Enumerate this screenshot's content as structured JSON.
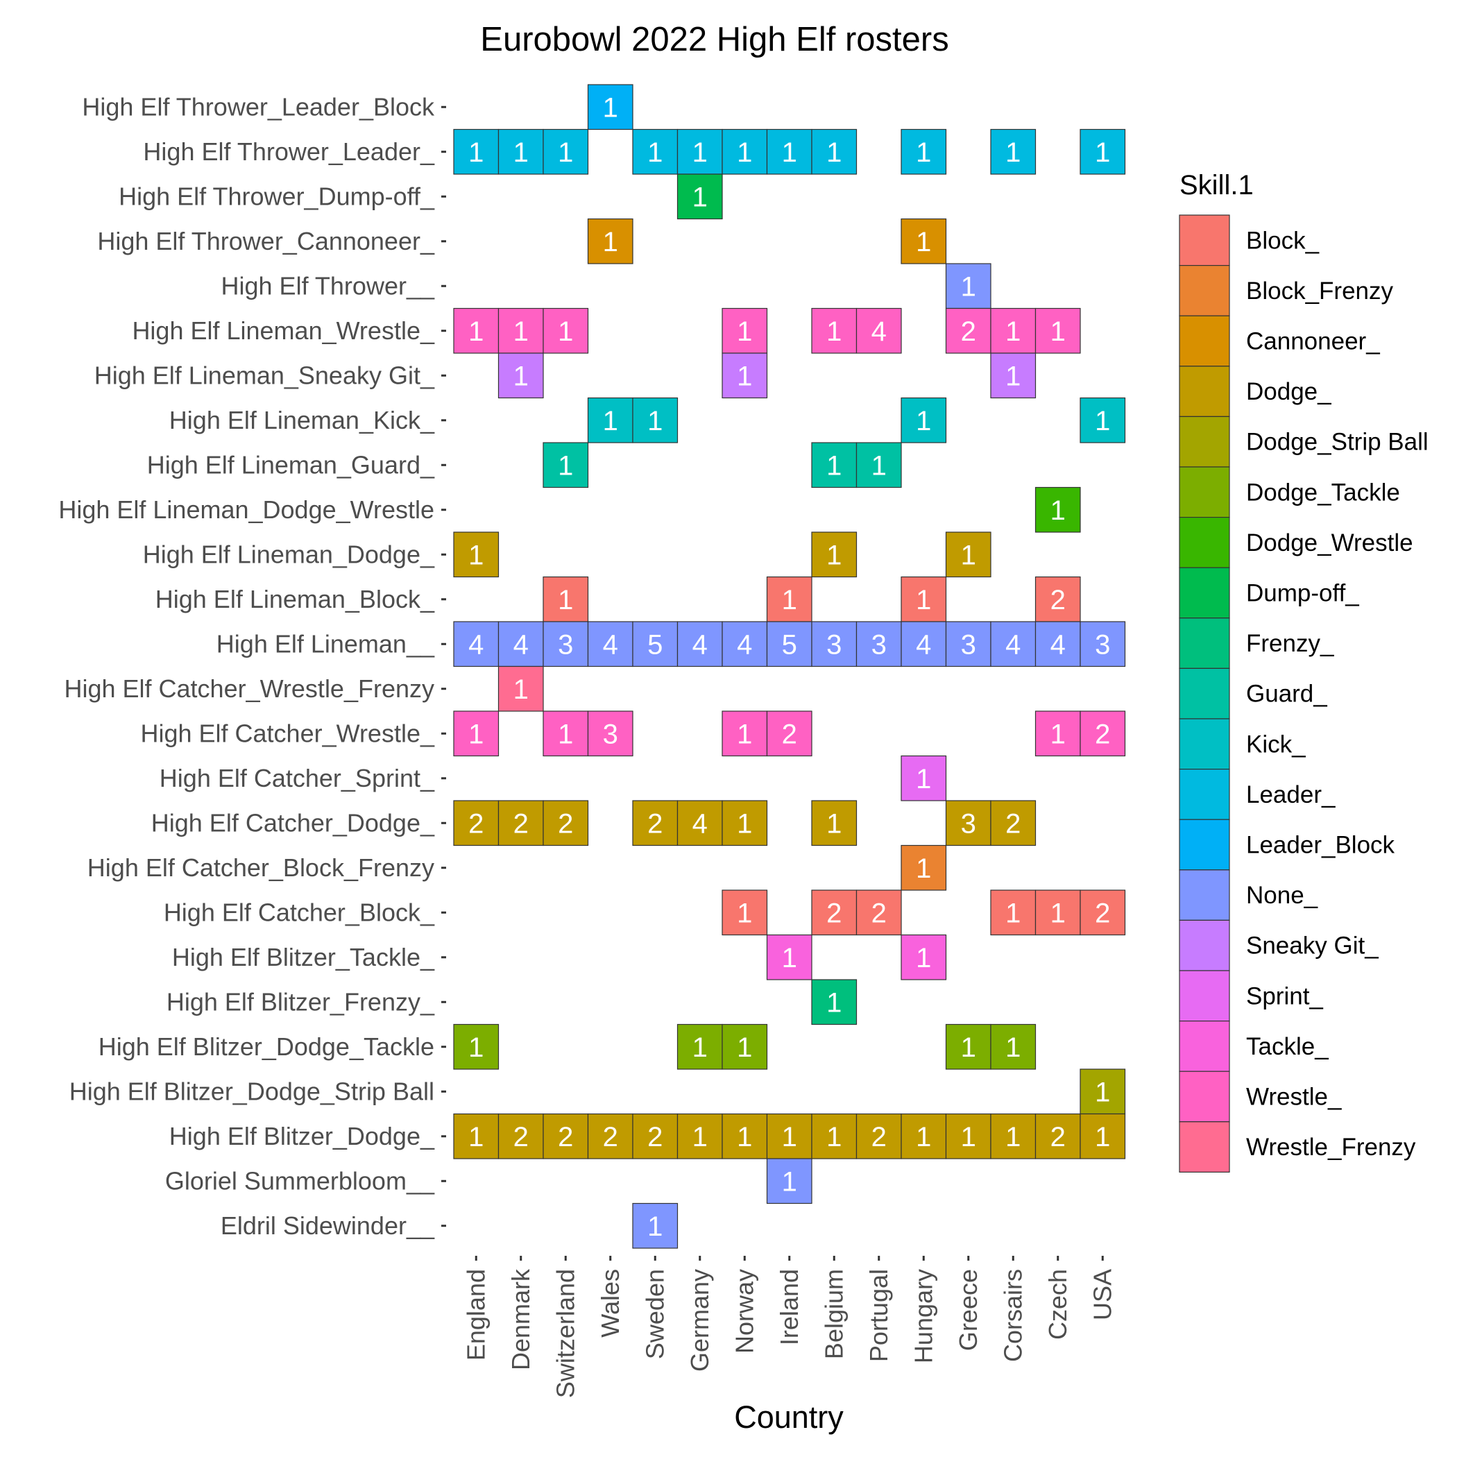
{
  "chart_data": {
    "type": "heatmap",
    "title": "Eurobowl 2022 High Elf rosters",
    "xlabel": "Country",
    "ylabel": "",
    "legend_title": "Skill.1",
    "legend_position": "right",
    "grid": false,
    "x_categories": [
      "England",
      "Denmark",
      "Switzerland",
      "Wales",
      "Sweden",
      "Germany",
      "Norway",
      "Ireland",
      "Belgium",
      "Portugal",
      "Hungary",
      "Greece",
      "Corsairs",
      "Czech",
      "USA"
    ],
    "y_categories": [
      "High Elf Thrower_Leader_Block",
      "High Elf Thrower_Leader_",
      "High Elf Thrower_Dump-off_",
      "High Elf Thrower_Cannoneer_",
      "High Elf Thrower__",
      "High Elf Lineman_Wrestle_",
      "High Elf Lineman_Sneaky Git_",
      "High Elf Lineman_Kick_",
      "High Elf Lineman_Guard_",
      "High Elf Lineman_Dodge_Wrestle",
      "High Elf Lineman_Dodge_",
      "High Elf Lineman_Block_",
      "High Elf Lineman__",
      "High Elf Catcher_Wrestle_Frenzy",
      "High Elf Catcher_Wrestle_",
      "High Elf Catcher_Sprint_",
      "High Elf Catcher_Dodge_",
      "High Elf Catcher_Block_Frenzy",
      "High Elf Catcher_Block_",
      "High Elf Blitzer_Tackle_",
      "High Elf Blitzer_Frenzy_",
      "High Elf Blitzer_Dodge_Tackle",
      "High Elf Blitzer_Dodge_Strip Ball",
      "High Elf Blitzer_Dodge_",
      "Gloriel Summerbloom__",
      "Eldril Sidewinder__"
    ],
    "legend": [
      {
        "skill": "Block_",
        "color": "#F8766D"
      },
      {
        "skill": "Block_Frenzy",
        "color": "#EA8331"
      },
      {
        "skill": "Cannoneer_",
        "color": "#D89000"
      },
      {
        "skill": "Dodge_",
        "color": "#C09B00"
      },
      {
        "skill": "Dodge_Strip Ball",
        "color": "#A3A500"
      },
      {
        "skill": "Dodge_Tackle",
        "color": "#7CAE00"
      },
      {
        "skill": "Dodge_Wrestle",
        "color": "#39B600"
      },
      {
        "skill": "Dump-off_",
        "color": "#00BB4E"
      },
      {
        "skill": "Frenzy_",
        "color": "#00BF7D"
      },
      {
        "skill": "Guard_",
        "color": "#00C1A3"
      },
      {
        "skill": "Kick_",
        "color": "#00BFC4"
      },
      {
        "skill": "Leader_",
        "color": "#00BAE0"
      },
      {
        "skill": "Leader_Block",
        "color": "#00B0F6"
      },
      {
        "skill": "None_",
        "color": "#7F96FF"
      },
      {
        "skill": "Sneaky Git_",
        "color": "#C77CFF"
      },
      {
        "skill": "Sprint_",
        "color": "#E76BF3"
      },
      {
        "skill": "Tackle_",
        "color": "#F962DD"
      },
      {
        "skill": "Wrestle_",
        "color": "#FF61C3"
      },
      {
        "skill": "Wrestle_Frenzy",
        "color": "#FF6C91"
      }
    ],
    "rows": [
      {
        "skill": "Leader_Block",
        "counts": [
          null,
          null,
          null,
          1,
          null,
          null,
          null,
          null,
          null,
          null,
          null,
          null,
          null,
          null,
          null
        ]
      },
      {
        "skill": "Leader_",
        "counts": [
          1,
          1,
          1,
          null,
          1,
          1,
          1,
          1,
          1,
          null,
          1,
          null,
          1,
          null,
          1
        ]
      },
      {
        "skill": "Dump-off_",
        "counts": [
          null,
          null,
          null,
          null,
          null,
          1,
          null,
          null,
          null,
          null,
          null,
          null,
          null,
          null,
          null
        ]
      },
      {
        "skill": "Cannoneer_",
        "counts": [
          null,
          null,
          null,
          1,
          null,
          null,
          null,
          null,
          null,
          null,
          1,
          null,
          null,
          null,
          null
        ]
      },
      {
        "skill": "None_",
        "counts": [
          null,
          null,
          null,
          null,
          null,
          null,
          null,
          null,
          null,
          null,
          null,
          1,
          null,
          null,
          null
        ]
      },
      {
        "skill": "Wrestle_",
        "counts": [
          1,
          1,
          1,
          null,
          null,
          null,
          1,
          null,
          1,
          4,
          null,
          2,
          1,
          1,
          null
        ]
      },
      {
        "skill": "Sneaky Git_",
        "counts": [
          null,
          1,
          null,
          null,
          null,
          null,
          1,
          null,
          null,
          null,
          null,
          null,
          1,
          null,
          null
        ]
      },
      {
        "skill": "Kick_",
        "counts": [
          null,
          null,
          null,
          1,
          1,
          null,
          null,
          null,
          null,
          null,
          1,
          null,
          null,
          null,
          1
        ]
      },
      {
        "skill": "Guard_",
        "counts": [
          null,
          null,
          1,
          null,
          null,
          null,
          null,
          null,
          1,
          1,
          null,
          null,
          null,
          null,
          null
        ]
      },
      {
        "skill": "Dodge_Wrestle",
        "counts": [
          null,
          null,
          null,
          null,
          null,
          null,
          null,
          null,
          null,
          null,
          null,
          null,
          null,
          1,
          null
        ]
      },
      {
        "skill": "Dodge_",
        "counts": [
          1,
          null,
          null,
          null,
          null,
          null,
          null,
          null,
          1,
          null,
          null,
          1,
          null,
          null,
          null
        ]
      },
      {
        "skill": "Block_",
        "counts": [
          null,
          null,
          1,
          null,
          null,
          null,
          null,
          1,
          null,
          null,
          1,
          null,
          null,
          2,
          null
        ]
      },
      {
        "skill": "None_",
        "counts": [
          4,
          4,
          3,
          4,
          5,
          4,
          4,
          5,
          3,
          3,
          4,
          3,
          4,
          4,
          3
        ]
      },
      {
        "skill": "Wrestle_Frenzy",
        "counts": [
          null,
          1,
          null,
          null,
          null,
          null,
          null,
          null,
          null,
          null,
          null,
          null,
          null,
          null,
          null
        ]
      },
      {
        "skill": "Wrestle_",
        "counts": [
          1,
          null,
          1,
          3,
          null,
          null,
          1,
          2,
          null,
          null,
          null,
          null,
          null,
          1,
          2
        ]
      },
      {
        "skill": "Sprint_",
        "counts": [
          null,
          null,
          null,
          null,
          null,
          null,
          null,
          null,
          null,
          null,
          1,
          null,
          null,
          null,
          null
        ]
      },
      {
        "skill": "Dodge_",
        "counts": [
          2,
          2,
          2,
          null,
          2,
          4,
          1,
          null,
          1,
          null,
          null,
          3,
          2,
          null,
          null
        ]
      },
      {
        "skill": "Block_Frenzy",
        "counts": [
          null,
          null,
          null,
          null,
          null,
          null,
          null,
          null,
          null,
          null,
          1,
          null,
          null,
          null,
          null
        ]
      },
      {
        "skill": "Block_",
        "counts": [
          null,
          null,
          null,
          null,
          null,
          null,
          1,
          null,
          2,
          2,
          null,
          null,
          1,
          1,
          2
        ]
      },
      {
        "skill": "Tackle_",
        "counts": [
          null,
          null,
          null,
          null,
          null,
          null,
          null,
          1,
          null,
          null,
          1,
          null,
          null,
          null,
          null
        ]
      },
      {
        "skill": "Frenzy_",
        "counts": [
          null,
          null,
          null,
          null,
          null,
          null,
          null,
          null,
          1,
          null,
          null,
          null,
          null,
          null,
          null
        ]
      },
      {
        "skill": "Dodge_Tackle",
        "counts": [
          1,
          null,
          null,
          null,
          null,
          1,
          1,
          null,
          null,
          null,
          null,
          1,
          1,
          null,
          null
        ]
      },
      {
        "skill": "Dodge_Strip Ball",
        "counts": [
          null,
          null,
          null,
          null,
          null,
          null,
          null,
          null,
          null,
          null,
          null,
          null,
          null,
          null,
          1
        ]
      },
      {
        "skill": "Dodge_",
        "counts": [
          1,
          2,
          2,
          2,
          2,
          1,
          1,
          1,
          1,
          2,
          1,
          1,
          1,
          2,
          1
        ]
      },
      {
        "skill": "None_",
        "counts": [
          null,
          null,
          null,
          null,
          null,
          null,
          null,
          1,
          null,
          null,
          null,
          null,
          null,
          null,
          null
        ]
      },
      {
        "skill": "None_",
        "counts": [
          null,
          null,
          null,
          null,
          1,
          null,
          null,
          null,
          null,
          null,
          null,
          null,
          null,
          null,
          null
        ]
      }
    ]
  }
}
